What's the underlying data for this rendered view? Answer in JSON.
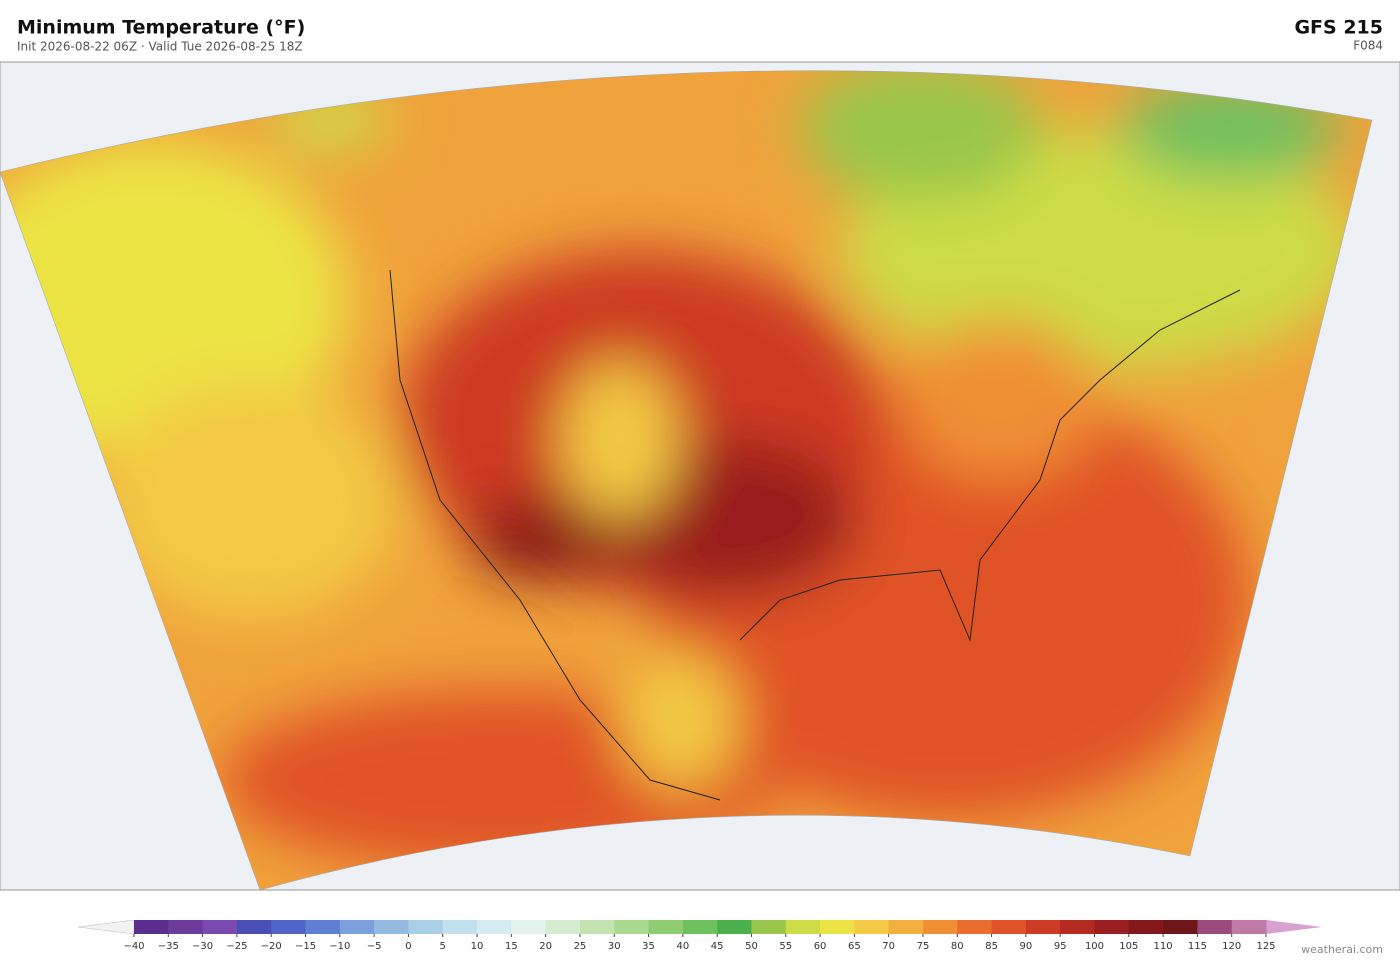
{
  "header": {
    "title": "Minimum Temperature  (°F)",
    "subtitle": "Init 2026-08-22 06Z  ·  Valid Tue 2026-08-25 18Z",
    "model": "GFS  215",
    "forecast_hour": "F084"
  },
  "colorbar": {
    "ticks": [
      {
        "value": -40,
        "label": "−40"
      },
      {
        "value": -35,
        "label": "−35"
      },
      {
        "value": -30,
        "label": "−30"
      },
      {
        "value": -25,
        "label": "−25"
      },
      {
        "value": -20,
        "label": "−20"
      },
      {
        "value": -15,
        "label": "−15"
      },
      {
        "value": -10,
        "label": "−10"
      },
      {
        "value": -5,
        "label": "−5"
      },
      0,
      5,
      10,
      15,
      20,
      25,
      30,
      35,
      40,
      45,
      50,
      55,
      60,
      65,
      70,
      75,
      80,
      85,
      90,
      95,
      100,
      105,
      110,
      115,
      120,
      125
    ],
    "colors": [
      "#5b2d8e",
      "#6c3b9c",
      "#7a4ab0",
      "#4a4fb8",
      "#4e64c8",
      "#5f7fd4",
      "#7ba0dc",
      "#94badf",
      "#a9cfe6",
      "#c0e0ee",
      "#d5ecf2",
      "#e3f3ee",
      "#d6ecd0",
      "#c4e3b0",
      "#a9d88f",
      "#8fcd73",
      "#6fc05f",
      "#4caf4e",
      "#97c64a",
      "#cddc46",
      "#ece445",
      "#f3c945",
      "#f4b03f",
      "#f08f35",
      "#ea6d2e",
      "#e05228",
      "#cc3a24",
      "#b42a21",
      "#9a1d1f",
      "#841719",
      "#6e1618",
      "#9b4a7e",
      "#c07aa6"
    ],
    "under_color": "#f2f2f4",
    "over_color": "#d9a1d0"
  },
  "watermark": "weatherai.com"
}
